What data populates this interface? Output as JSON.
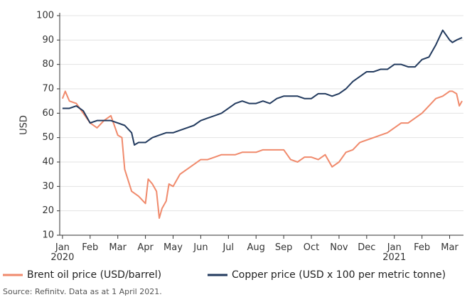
{
  "chart_data": {
    "type": "line",
    "y_label": "USD",
    "source": "Source: Refinitv. Data as at 1 April 2021.",
    "xlim": [
      -0.1,
      14.5
    ],
    "xticks": [
      {
        "value": 0,
        "label": "Jan 2020"
      },
      {
        "value": 1,
        "label": "Feb"
      },
      {
        "value": 2,
        "label": "Mar"
      },
      {
        "value": 3,
        "label": "Apr"
      },
      {
        "value": 4,
        "label": "May"
      },
      {
        "value": 5,
        "label": "Jun"
      },
      {
        "value": 6,
        "label": "Jul"
      },
      {
        "value": 7,
        "label": "Aug"
      },
      {
        "value": 8,
        "label": "Sep"
      },
      {
        "value": 9,
        "label": "Oct"
      },
      {
        "value": 10,
        "label": "Nov"
      },
      {
        "value": 11,
        "label": "Dec"
      },
      {
        "value": 12,
        "label": "Jan 2021"
      },
      {
        "value": 13,
        "label": "Feb"
      },
      {
        "value": 14,
        "label": "Mar"
      }
    ],
    "ylim": [
      10,
      100
    ],
    "yticks": [
      10,
      20,
      30,
      40,
      50,
      60,
      70,
      80,
      90,
      100
    ],
    "grid": true,
    "series": [
      {
        "name": "Brent oil price (USD/barrel)",
        "color": "#f08a6c",
        "x": [
          0,
          0.1,
          0.25,
          0.5,
          0.75,
          1.0,
          1.25,
          1.5,
          1.75,
          2.0,
          2.15,
          2.25,
          2.5,
          2.75,
          3.0,
          3.1,
          3.25,
          3.4,
          3.5,
          3.6,
          3.75,
          3.85,
          4.0,
          4.25,
          4.5,
          4.75,
          5.0,
          5.25,
          5.5,
          5.75,
          6.0,
          6.25,
          6.5,
          6.75,
          7.0,
          7.25,
          7.5,
          7.75,
          8.0,
          8.25,
          8.5,
          8.75,
          9.0,
          9.25,
          9.5,
          9.75,
          10.0,
          10.25,
          10.5,
          10.75,
          11.0,
          11.25,
          11.5,
          11.75,
          12.0,
          12.25,
          12.5,
          12.75,
          13.0,
          13.25,
          13.5,
          13.75,
          14.0,
          14.1,
          14.25,
          14.35,
          14.45
        ],
        "values": [
          66,
          69,
          65,
          64,
          60,
          56,
          54,
          57,
          59,
          51,
          50,
          37,
          28,
          26,
          23,
          33,
          31,
          28,
          17,
          21,
          24,
          31,
          30,
          35,
          37,
          39,
          41,
          41,
          42,
          43,
          43,
          43,
          44,
          44,
          44,
          45,
          45,
          45,
          45,
          41,
          40,
          42,
          42,
          41,
          43,
          38,
          40,
          44,
          45,
          48,
          49,
          50,
          51,
          52,
          54,
          56,
          56,
          58,
          60,
          63,
          66,
          67,
          69,
          69,
          68,
          63,
          65
        ]
      },
      {
        "name": "Copper price (USD x 100 per metric tonne)",
        "color": "#223a5e",
        "x": [
          0,
          0.25,
          0.5,
          0.75,
          1.0,
          1.25,
          1.5,
          1.75,
          2.0,
          2.25,
          2.5,
          2.6,
          2.75,
          3.0,
          3.25,
          3.5,
          3.75,
          4.0,
          4.25,
          4.5,
          4.75,
          5.0,
          5.25,
          5.5,
          5.75,
          6.0,
          6.25,
          6.5,
          6.75,
          7.0,
          7.25,
          7.5,
          7.75,
          8.0,
          8.25,
          8.5,
          8.75,
          9.0,
          9.25,
          9.5,
          9.75,
          10.0,
          10.25,
          10.5,
          10.75,
          11.0,
          11.25,
          11.5,
          11.75,
          12.0,
          12.25,
          12.5,
          12.75,
          13.0,
          13.25,
          13.5,
          13.75,
          14.0,
          14.1,
          14.25,
          14.45
        ],
        "values": [
          62,
          62,
          63,
          61,
          56,
          57,
          57,
          57,
          56,
          55,
          52,
          47,
          48,
          48,
          50,
          51,
          52,
          52,
          53,
          54,
          55,
          57,
          58,
          59,
          60,
          62,
          64,
          65,
          64,
          64,
          65,
          64,
          66,
          67,
          67,
          67,
          66,
          66,
          68,
          68,
          67,
          68,
          70,
          73,
          75,
          77,
          77,
          78,
          78,
          80,
          80,
          79,
          79,
          82,
          83,
          88,
          94,
          90,
          89,
          90,
          91
        ]
      }
    ]
  }
}
